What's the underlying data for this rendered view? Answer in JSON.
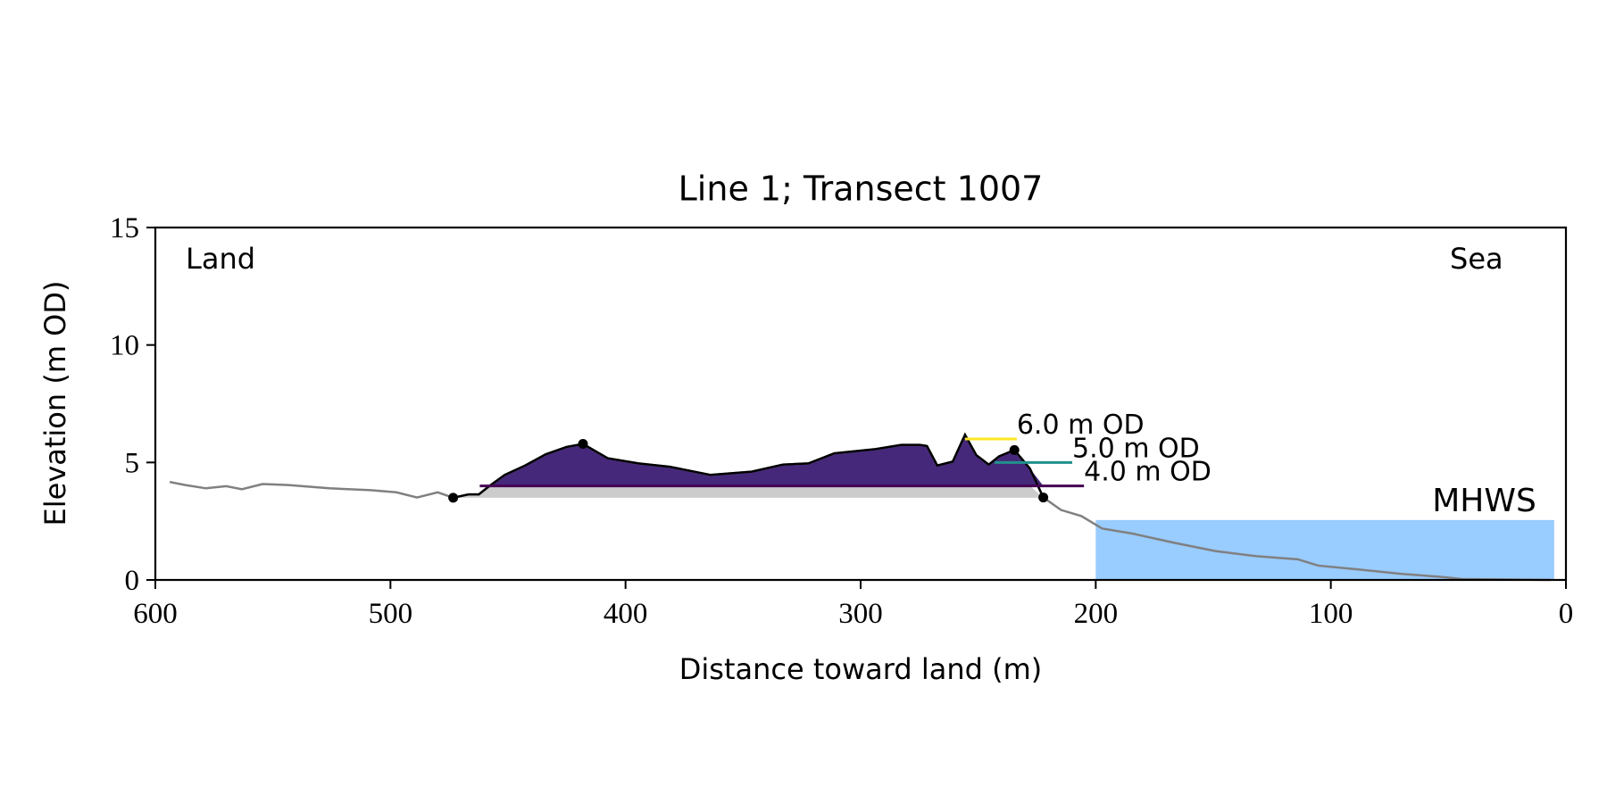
{
  "chart_data": {
    "type": "line",
    "title": "Line 1; Transect 1007",
    "x_label": "Distance toward land (m)",
    "y_label": "Elevation (m OD)",
    "annotations": [
      {
        "text": "Land",
        "corner": "top-left"
      },
      {
        "text": "Sea",
        "corner": "top-right"
      }
    ],
    "xlim": [
      600,
      0
    ],
    "ylim": [
      0,
      15
    ],
    "xticks": [
      600,
      500,
      400,
      300,
      200,
      100,
      0
    ],
    "yticks": [
      0,
      5,
      10,
      15
    ],
    "x": [
      593.9,
      587.3,
      578.5,
      569.8,
      563.2,
      554.4,
      543.5,
      526,
      508.4,
      497.5,
      488.7,
      479.9,
      473.3,
      466.8,
      462.4,
      458,
      451.4,
      442.7,
      433.9,
      425.1,
      418.1,
      407.6,
      394.5,
      381.3,
      363.8,
      346.3,
      333.1,
      322.2,
      311.2,
      293.7,
      282.7,
      274.8,
      271.8,
      267.4,
      260.8,
      255.6,
      250.8,
      245.5,
      241.1,
      234.6,
      228,
      222.3,
      214.8,
      206.1,
      197.3,
      184.2,
      166.6,
      149.1,
      131.6,
      114.1,
      105.3,
      87.8,
      70.3,
      52.8,
      44.1,
      6.8
    ],
    "series": [
      {
        "color": "#808080",
        "values": [
          4.17,
          4.04,
          3.9,
          3.99,
          3.86,
          4.08,
          4.04,
          3.9,
          3.82,
          3.73,
          3.51,
          3.73,
          3.5,
          3.64,
          3.64,
          3.99,
          4.47,
          4.87,
          5.35,
          5.66,
          5.79,
          5.18,
          4.96,
          4.82,
          4.47,
          4.61,
          4.91,
          4.96,
          5.39,
          5.57,
          5.75,
          5.75,
          5.7,
          4.87,
          5.04,
          6.18,
          5.31,
          4.91,
          5.26,
          5.53,
          4.74,
          3.51,
          2.98,
          2.72,
          2.19,
          1.97,
          1.58,
          1.23,
          1.01,
          0.88,
          0.61,
          0.44,
          0.26,
          0.13,
          0.04,
          0
        ]
      },
      {
        "color": "#000000",
        "values": [
          null,
          null,
          null,
          null,
          null,
          null,
          null,
          null,
          null,
          null,
          null,
          null,
          3.5,
          3.64,
          3.64,
          3.99,
          4.47,
          4.87,
          5.35,
          5.66,
          5.79,
          5.18,
          4.96,
          4.82,
          4.47,
          4.61,
          4.91,
          4.96,
          5.39,
          5.57,
          5.75,
          5.75,
          5.7,
          4.87,
          5.04,
          6.18,
          5.31,
          4.91,
          5.26,
          5.53,
          4.74,
          3.51,
          null,
          null,
          null,
          null,
          null,
          null,
          null,
          null,
          null,
          null,
          null,
          null,
          null,
          null
        ]
      }
    ],
    "base": 3.5,
    "base_color": "#cccccc",
    "fill_color": "#46287a",
    "levels": [
      {
        "value": 6.0,
        "label": "6.0 m OD",
        "color": "#fde725",
        "x": [
          255.6,
          233.6
        ]
      },
      {
        "value": 5.0,
        "label": "5.0 m OD",
        "color": "#21918c",
        "x": [
          243,
          210
        ]
      },
      {
        "value": 4.0,
        "label": "4.0 m OD",
        "color": "#440154",
        "x": [
          462,
          205
        ]
      }
    ],
    "markers": [
      {
        "x": 473.3,
        "y": 3.5
      },
      {
        "x": 418.1,
        "y": 5.79
      },
      {
        "x": 234.6,
        "y": 5.53
      },
      {
        "x": 222.3,
        "y": 3.51
      }
    ],
    "mhws": {
      "label": "MHWS",
      "value": 2.55,
      "x": [
        200,
        5
      ],
      "color": "#99ccff",
      "label_color": "#6699cc"
    }
  }
}
